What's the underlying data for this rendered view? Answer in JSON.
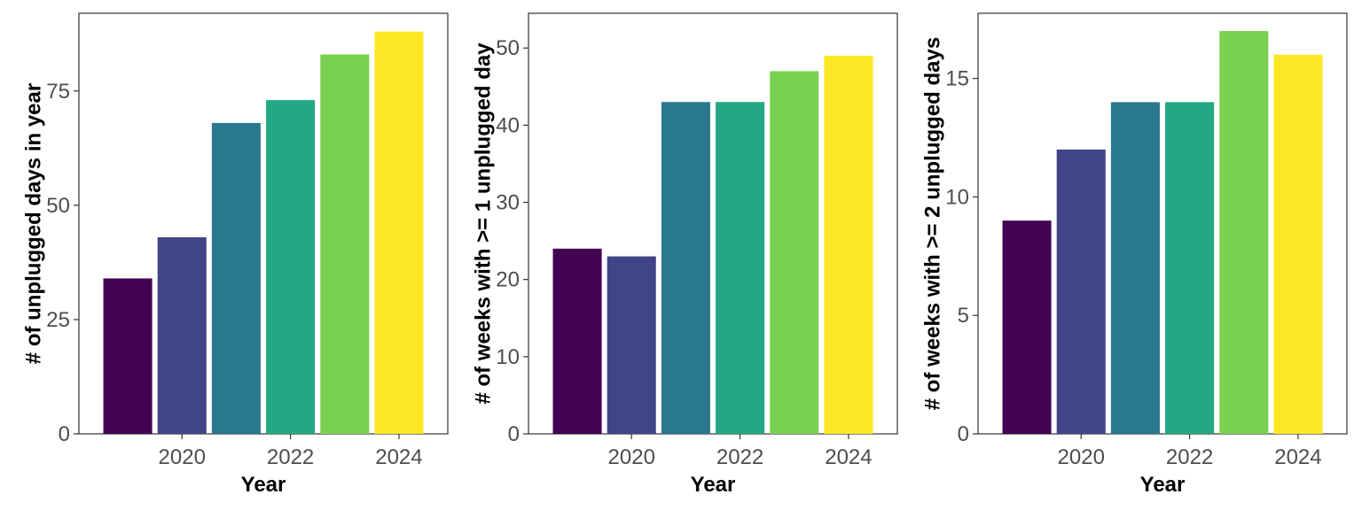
{
  "chart_data": [
    {
      "type": "bar",
      "categories": [
        "2019",
        "2020",
        "2021",
        "2022",
        "2023",
        "2024"
      ],
      "values": [
        34,
        43,
        68,
        73,
        83,
        88
      ],
      "xlabel": "Year",
      "ylabel": "# of unplugged days in year",
      "ylim": [
        0,
        92
      ],
      "yticks": [
        0,
        25,
        50,
        75
      ],
      "xticks": [
        "2020",
        "2022",
        "2024"
      ],
      "grid": false,
      "colors": [
        "#440154",
        "#414487",
        "#2A788E",
        "#22A884",
        "#7AD151",
        "#FDE725"
      ]
    },
    {
      "type": "bar",
      "categories": [
        "2019",
        "2020",
        "2021",
        "2022",
        "2023",
        "2024"
      ],
      "values": [
        24,
        23,
        43,
        43,
        47,
        49
      ],
      "xlabel": "Year",
      "ylabel": "# of weeks with >= 1 unplugged day",
      "ylim": [
        0,
        54.5
      ],
      "yticks": [
        0,
        10,
        20,
        30,
        40,
        50
      ],
      "xticks": [
        "2020",
        "2022",
        "2024"
      ],
      "grid": false,
      "colors": [
        "#440154",
        "#414487",
        "#2A788E",
        "#22A884",
        "#7AD151",
        "#FDE725"
      ]
    },
    {
      "type": "bar",
      "categories": [
        "2019",
        "2020",
        "2021",
        "2022",
        "2023",
        "2024"
      ],
      "values": [
        9,
        12,
        14,
        14,
        17,
        16
      ],
      "xlabel": "Year",
      "ylabel": "# of weeks with >= 2 unplugged days",
      "ylim": [
        0,
        17.75
      ],
      "yticks": [
        0,
        5,
        10,
        15
      ],
      "xticks": [
        "2020",
        "2022",
        "2024"
      ],
      "grid": false,
      "colors": [
        "#440154",
        "#414487",
        "#2A788E",
        "#22A884",
        "#7AD151",
        "#FDE725"
      ]
    }
  ]
}
